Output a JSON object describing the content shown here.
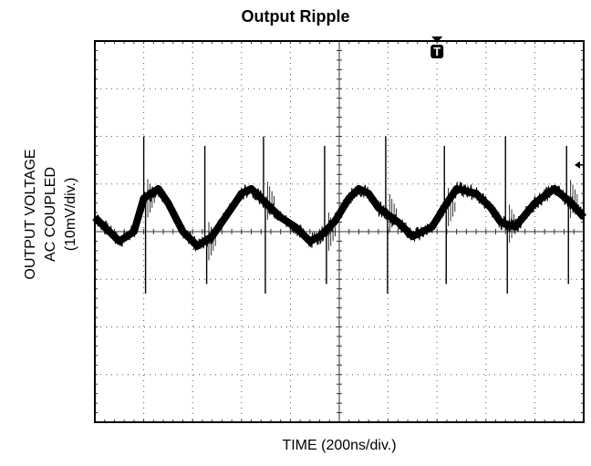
{
  "chart_data": {
    "type": "line",
    "title": "Output Ripple",
    "xlabel": "TIME (200ns/div.)",
    "ylabel_lines": [
      "OUTPUT VOLTAGE",
      "AC COUPLED",
      "(10mV/div.)"
    ],
    "x_units": "ns",
    "y_units": "mV",
    "xlim": [
      0,
      2000
    ],
    "ylim": [
      -40,
      40
    ],
    "grid": true,
    "grid_divisions": {
      "x": 10,
      "y": 8
    },
    "trigger_marker": "T",
    "trigger_x": 1400,
    "series": [
      {
        "x": [
          0,
          40,
          100,
          160,
          200,
          260,
          300,
          330,
          360,
          420,
          480,
          560,
          600,
          640,
          700,
          760,
          820,
          880,
          920,
          980,
          1040,
          1080,
          1120,
          1160,
          1240,
          1300,
          1380,
          1440,
          1480,
          1560,
          1620,
          1660,
          1720,
          1800,
          1880,
          1950,
          2000
        ],
        "values": [
          3,
          1,
          -2,
          0,
          7,
          9,
          6,
          3,
          0,
          -3,
          -1,
          5,
          8,
          9,
          6,
          3,
          1,
          -2,
          -1,
          2,
          7,
          9,
          8,
          5,
          2,
          -1,
          1,
          6,
          9,
          8,
          5,
          2,
          1,
          6,
          9,
          6,
          3
        ]
      }
    ],
    "spikes_x": [
      200,
      450,
      690,
      940,
      1190,
      1430,
      1680,
      1930
    ],
    "spike_high_mV": 20,
    "spike_low_mV": -13,
    "colors": {
      "trace": "#000000",
      "grid": "#555555",
      "frame": "#000000"
    }
  }
}
